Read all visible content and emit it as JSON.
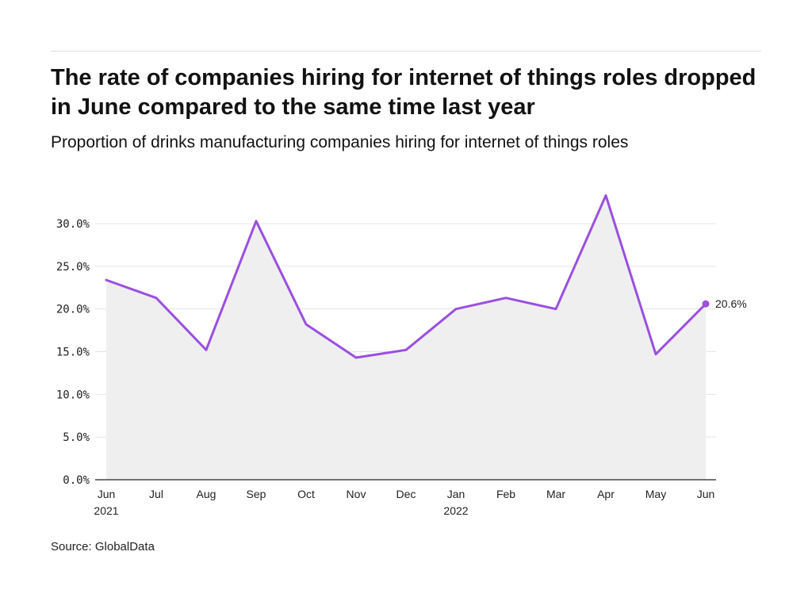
{
  "chart_data": {
    "type": "area",
    "title": "The rate of companies hiring for internet of things roles dropped in June compared to the same time last year",
    "subtitle": "Proportion of drinks manufacturing companies hiring for internet of things roles",
    "source": "Source: GlobalData",
    "x": [
      "Jun",
      "Jul",
      "Aug",
      "Sep",
      "Oct",
      "Nov",
      "Dec",
      "Jan",
      "Feb",
      "Mar",
      "Apr",
      "May",
      "Jun"
    ],
    "x_years": {
      "0": "2021",
      "7": "2022"
    },
    "y_unit": "%",
    "series": [
      {
        "values": [
          23.4,
          21.3,
          15.2,
          30.3,
          18.2,
          14.3,
          15.2,
          20.0,
          21.3,
          20.0,
          33.3,
          14.7,
          20.6
        ]
      }
    ],
    "ylim": [
      0,
      30
    ],
    "y_ticks": [
      "0.0%",
      "5.0%",
      "10.0%",
      "15.0%",
      "20.0%",
      "25.0%",
      "30.0%"
    ],
    "end_label": "20.6%",
    "grid": true,
    "legend": "none",
    "colors": {
      "line": "#9b4fe0",
      "area": "#efefef",
      "grid": "#e4e4e4",
      "axis": "#222222"
    }
  }
}
